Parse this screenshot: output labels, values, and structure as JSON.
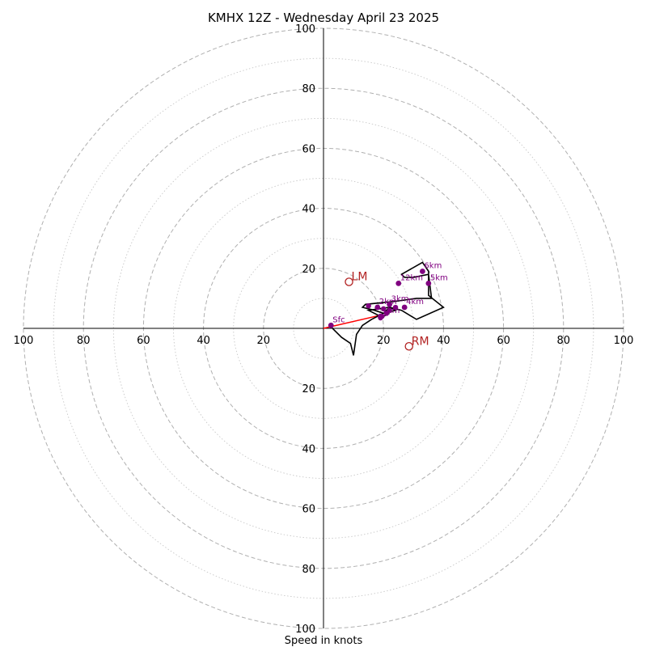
{
  "chart_data": {
    "type": "hodograph",
    "title": "KMHX 12Z - Wednesday April 23 2025",
    "xlabel": "Speed in knots",
    "ring_max": 100,
    "ring_step": 10,
    "ticks": [
      "20",
      "40",
      "60",
      "80",
      "100"
    ],
    "colors": {
      "trace": "#000000",
      "height_point": "#800080",
      "motion": "#b22222",
      "shear_vector": "#ff0000",
      "major_ring": "#b0b0b0",
      "minor_ring": "#c8c8c8"
    },
    "hodograph_trace": [
      [
        2,
        1
      ],
      [
        6,
        -3
      ],
      [
        9,
        -5
      ],
      [
        10,
        -9
      ],
      [
        11,
        -2
      ],
      [
        13,
        1
      ],
      [
        16,
        3
      ],
      [
        18,
        4
      ],
      [
        20,
        5
      ],
      [
        21,
        6
      ],
      [
        22,
        7
      ],
      [
        24,
        6
      ],
      [
        20,
        5
      ],
      [
        17,
        6
      ],
      [
        13,
        7
      ],
      [
        14,
        8
      ],
      [
        24,
        9
      ],
      [
        31,
        10
      ],
      [
        36,
        10
      ],
      [
        35,
        18
      ],
      [
        30,
        17
      ],
      [
        27,
        17
      ],
      [
        26,
        18
      ],
      [
        33,
        22
      ],
      [
        35,
        19
      ],
      [
        35,
        11
      ],
      [
        40,
        7
      ],
      [
        31,
        3
      ],
      [
        26,
        6
      ],
      [
        22,
        7
      ],
      [
        15,
        6
      ],
      [
        19,
        4
      ],
      [
        20,
        4
      ],
      [
        22,
        5
      ]
    ],
    "height_points": [
      {
        "label": "Sfc",
        "u": 2.5,
        "v": 1
      },
      {
        "label": "1km",
        "u": 19,
        "v": 4
      },
      {
        "label": "2km",
        "u": 18,
        "v": 7
      },
      {
        "label": "3km",
        "u": 22,
        "v": 8
      },
      {
        "label": "4km",
        "u": 27,
        "v": 7
      },
      {
        "label": "5km",
        "u": 35,
        "v": 15
      },
      {
        "label": "6km",
        "u": 33,
        "v": 19
      },
      {
        "label": "12km",
        "u": 25,
        "v": 15
      }
    ],
    "extra_points": [
      {
        "u": 19,
        "v": 3.5
      },
      {
        "u": 15,
        "v": 7.5
      },
      {
        "u": 20,
        "v": 6.5
      },
      {
        "u": 21,
        "v": 5
      },
      {
        "u": 24,
        "v": 7
      },
      {
        "u": 19.5,
        "v": 4
      },
      {
        "u": 22,
        "v": 6
      }
    ],
    "storm_motion": [
      {
        "label": "LM",
        "u": 8.5,
        "v": 15.5
      },
      {
        "label": "RM",
        "u": 28.5,
        "v": -6
      }
    ],
    "shear_vector": {
      "from": [
        0,
        0
      ],
      "to": [
        19.5,
        4.5
      ]
    }
  }
}
